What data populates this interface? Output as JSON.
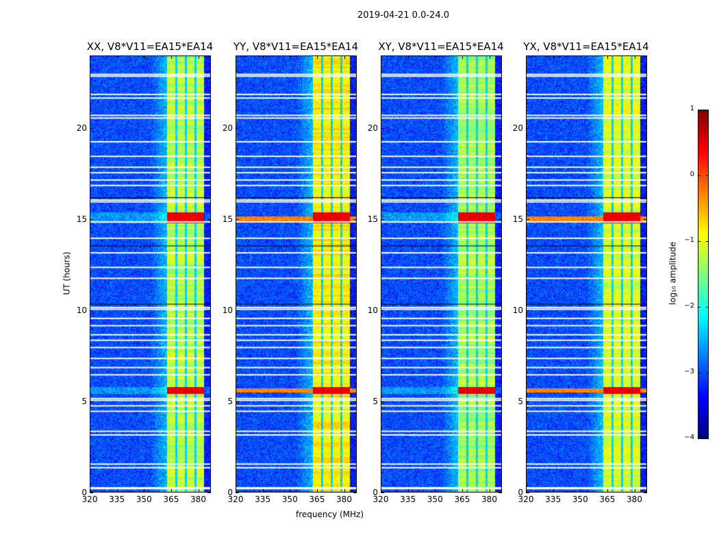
{
  "chart_data": {
    "type": "heatmap",
    "title": "2019-04-21 0.0-24.0",
    "xlabel": "frequency (MHz)",
    "ylabel": "UT (hours)",
    "xlim": [
      320,
      387
    ],
    "ylim": [
      0,
      24
    ],
    "xticks": [
      320,
      335,
      350,
      365,
      380
    ],
    "yticks": [
      0,
      5,
      10,
      15,
      20
    ],
    "panels": [
      {
        "title": "XX, V8*V11=EA15*EA14",
        "rfi_broadband": false,
        "band_level": -1.2
      },
      {
        "title": "YY, V8*V11=EA15*EA14",
        "rfi_broadband": true,
        "band_level": -0.8
      },
      {
        "title": "XY, V8*V11=EA15*EA14",
        "rfi_broadband": false,
        "band_level": -1.3
      },
      {
        "title": "YX, V8*V11=EA15*EA14",
        "rfi_broadband": true,
        "band_level": -1.0
      }
    ],
    "background_level": -3.1,
    "band_mhz": [
      362.3,
      382.5
    ],
    "band_gaps_mhz": [
      367.2,
      372.5,
      377.8
    ],
    "strong_rfi_ut": [
      [
        14.8,
        15.4
      ],
      [
        5.4,
        5.8
      ]
    ],
    "flagged_ut": [
      23.0,
      22.9,
      21.9,
      21.7,
      20.75,
      20.6,
      19.3,
      18.5,
      17.9,
      17.6,
      17.2,
      16.9,
      16.1,
      16.0,
      14.9,
      14.0,
      13.2,
      12.4,
      11.8,
      10.2,
      10.1,
      9.6,
      9.2,
      8.7,
      8.4,
      8.0,
      7.4,
      6.9,
      6.5,
      5.2,
      5.1,
      4.8,
      4.5,
      3.4,
      3.2,
      1.6,
      1.4,
      0.3,
      0.25
    ],
    "colorbar": {
      "label": "log₁₀ amplitude",
      "range": [
        -4,
        1
      ],
      "ticks": [
        1,
        0,
        -1,
        -2,
        -3,
        -4
      ],
      "tick_labels": [
        "1",
        "0",
        "−1",
        "−2",
        "−3",
        "−4"
      ],
      "colormap": "jet"
    }
  }
}
